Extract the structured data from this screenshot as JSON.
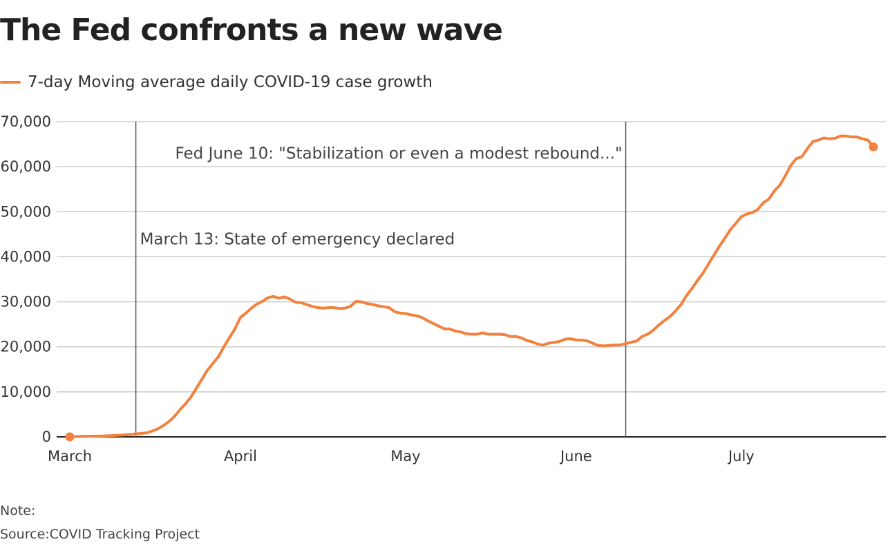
{
  "chart_data": {
    "type": "line",
    "title": "The Fed confronts a new wave",
    "series": [
      {
        "name": "7-day Moving average daily COVID-19 case growth",
        "color": "#f3813e",
        "values": [
          [
            0,
            0
          ],
          [
            2,
            100
          ],
          [
            4,
            150
          ],
          [
            6,
            200
          ],
          [
            8,
            300
          ],
          [
            10,
            450
          ],
          [
            12,
            650
          ],
          [
            14,
            900
          ],
          [
            15,
            1300
          ],
          [
            16,
            1800
          ],
          [
            17,
            2500
          ],
          [
            18,
            3400
          ],
          [
            19,
            4500
          ],
          [
            20,
            6000
          ],
          [
            21,
            7300
          ],
          [
            22,
            8800
          ],
          [
            23,
            10800
          ],
          [
            24,
            12800
          ],
          [
            25,
            14800
          ],
          [
            26,
            16300
          ],
          [
            27,
            17800
          ],
          [
            28,
            20000
          ],
          [
            29,
            22000
          ],
          [
            30,
            24000
          ],
          [
            31,
            26500
          ],
          [
            32,
            27500
          ],
          [
            33,
            28600
          ],
          [
            34,
            29500
          ],
          [
            35,
            30100
          ],
          [
            36,
            30900
          ],
          [
            37,
            31200
          ],
          [
            38,
            30800
          ],
          [
            39,
            31100
          ],
          [
            40,
            30600
          ],
          [
            41,
            29900
          ],
          [
            42,
            29800
          ],
          [
            43,
            29400
          ],
          [
            44,
            29000
          ],
          [
            45,
            28700
          ],
          [
            46,
            28600
          ],
          [
            47,
            28700
          ],
          [
            48,
            28700
          ],
          [
            49,
            28500
          ],
          [
            50,
            28600
          ],
          [
            51,
            29000
          ],
          [
            52,
            30100
          ],
          [
            53,
            30000
          ],
          [
            54,
            29600
          ],
          [
            55,
            29400
          ],
          [
            56,
            29100
          ],
          [
            57,
            28900
          ],
          [
            58,
            28700
          ],
          [
            59,
            27800
          ],
          [
            60,
            27500
          ],
          [
            61,
            27400
          ],
          [
            62,
            27100
          ],
          [
            63,
            26900
          ],
          [
            64,
            26500
          ],
          [
            65,
            25800
          ],
          [
            66,
            25200
          ],
          [
            67,
            24600
          ],
          [
            68,
            24000
          ],
          [
            69,
            24000
          ],
          [
            70,
            23500
          ],
          [
            71,
            23300
          ],
          [
            72,
            22900
          ],
          [
            73,
            22800
          ],
          [
            74,
            22800
          ],
          [
            75,
            23100
          ],
          [
            76,
            22800
          ],
          [
            77,
            22800
          ],
          [
            78,
            22800
          ],
          [
            79,
            22700
          ],
          [
            80,
            22300
          ],
          [
            81,
            22300
          ],
          [
            82,
            22000
          ],
          [
            83,
            21400
          ],
          [
            84,
            21100
          ],
          [
            85,
            20600
          ],
          [
            86,
            20400
          ],
          [
            87,
            20800
          ],
          [
            88,
            21000
          ],
          [
            89,
            21200
          ],
          [
            90,
            21700
          ],
          [
            91,
            21800
          ],
          [
            92,
            21500
          ],
          [
            93,
            21500
          ],
          [
            94,
            21300
          ],
          [
            95,
            20800
          ],
          [
            96,
            20300
          ],
          [
            97,
            20200
          ],
          [
            98,
            20300
          ],
          [
            99,
            20400
          ],
          [
            100,
            20400
          ],
          [
            101,
            20700
          ],
          [
            102,
            21000
          ],
          [
            103,
            21300
          ],
          [
            104,
            22300
          ],
          [
            105,
            22800
          ],
          [
            106,
            23700
          ],
          [
            107,
            24800
          ],
          [
            108,
            25800
          ],
          [
            109,
            26700
          ],
          [
            110,
            27900
          ],
          [
            111,
            29300
          ],
          [
            112,
            31300
          ],
          [
            113,
            32900
          ],
          [
            114,
            34700
          ],
          [
            115,
            36300
          ],
          [
            116,
            38300
          ],
          [
            117,
            40300
          ],
          [
            118,
            42300
          ],
          [
            119,
            44100
          ],
          [
            120,
            46000
          ],
          [
            121,
            47400
          ],
          [
            122,
            48900
          ],
          [
            123,
            49500
          ],
          [
            124,
            49800
          ],
          [
            125,
            50500
          ],
          [
            126,
            52000
          ],
          [
            127,
            52800
          ],
          [
            128,
            54600
          ],
          [
            129,
            55900
          ],
          [
            130,
            58000
          ],
          [
            131,
            60300
          ],
          [
            132,
            61800
          ],
          [
            133,
            62200
          ],
          [
            134,
            64000
          ],
          [
            135,
            65600
          ],
          [
            136,
            65900
          ],
          [
            137,
            66400
          ],
          [
            138,
            66200
          ],
          [
            139,
            66300
          ],
          [
            140,
            66800
          ],
          [
            141,
            66800
          ],
          [
            142,
            66600
          ],
          [
            143,
            66600
          ],
          [
            144,
            66200
          ],
          [
            145,
            65900
          ],
          [
            146,
            64400
          ]
        ]
      }
    ],
    "x_ticks": [
      {
        "label": "March",
        "value": 0
      },
      {
        "label": "April",
        "value": 31
      },
      {
        "label": "May",
        "value": 61
      },
      {
        "label": "June",
        "value": 92
      },
      {
        "label": "July",
        "value": 122
      }
    ],
    "xlim": [
      0,
      146
    ],
    "ylim": [
      0,
      70000
    ],
    "y_ticks": [
      0,
      10000,
      20000,
      30000,
      40000,
      50000,
      60000,
      70000
    ],
    "y_tick_labels": [
      "0",
      "10,000",
      "20,000",
      "30,000",
      "40,000",
      "50,000",
      "60,000",
      "70,000"
    ],
    "annotations": [
      {
        "label": "March 13: State of emergency declared",
        "x": 12,
        "label_y": 44000,
        "align": "start"
      },
      {
        "label": "Fed June 10: \"Stabilization or even a modest rebound...\"",
        "x": 101,
        "label_y": 63000,
        "align": "end"
      }
    ],
    "grid": true,
    "legend_position": "top-left"
  },
  "header": {
    "title": "The Fed confronts a new wave",
    "legend_label": "7-day Moving average daily COVID-19 case growth"
  },
  "footer": {
    "note": "Note:",
    "source": "Source:COVID Tracking Project"
  },
  "colors": {
    "line": "#f3813e",
    "grid": "#cccccc",
    "axis": "#222222",
    "annotation_line": "#555555"
  }
}
